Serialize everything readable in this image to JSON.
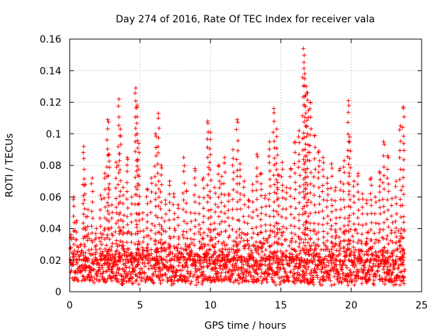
{
  "chart_data": {
    "type": "scatter",
    "title": "Day 274 of 2016, Rate Of TEC Index for receiver vala",
    "xlabel": "GPS time / hours",
    "ylabel": "ROTI / TECUs",
    "xlim": [
      0,
      25
    ],
    "ylim": [
      0,
      0.16
    ],
    "xticks": [
      0,
      5,
      10,
      15,
      20,
      25
    ],
    "xtick_labels": [
      "0",
      "5",
      "10",
      "15",
      "20",
      "25"
    ],
    "yticks": [
      0,
      0.02,
      0.04,
      0.06,
      0.08,
      0.1,
      0.12,
      0.14,
      0.16
    ],
    "ytick_labels": [
      "0",
      "0.02",
      "0.04",
      "0.06",
      "0.08",
      "0.1",
      "0.12",
      "0.14",
      "0.16"
    ],
    "grid": true,
    "marker": "plus",
    "color": "#ff0000",
    "series": [
      {
        "name": "ROTI",
        "x": [
          0.1,
          0.3,
          0.5,
          0.8,
          1.0,
          1.1,
          1.3,
          1.6,
          1.9,
          2.2,
          2.5,
          2.7,
          2.8,
          3.0,
          3.3,
          3.5,
          3.6,
          3.8,
          4.1,
          4.4,
          4.7,
          4.8,
          4.9,
          5.2,
          5.5,
          5.8,
          6.1,
          6.3,
          6.5,
          6.8,
          7.1,
          7.4,
          7.7,
          8.1,
          8.3,
          8.6,
          8.9,
          9.2,
          9.5,
          9.8,
          10.0,
          10.3,
          10.6,
          10.8,
          11.0,
          11.3,
          11.6,
          11.9,
          12.1,
          12.4,
          12.7,
          13.0,
          13.3,
          13.6,
          13.9,
          14.2,
          14.5,
          14.7,
          14.8,
          15.1,
          15.4,
          15.7,
          16.0,
          16.3,
          16.6,
          16.7,
          16.8,
          16.9,
          17.1,
          17.4,
          17.7,
          18.0,
          18.3,
          18.6,
          18.9,
          19.2,
          19.5,
          19.8,
          19.9,
          20.2,
          20.5,
          20.8,
          21.1,
          21.4,
          21.7,
          22.0,
          22.3,
          22.6,
          22.9,
          23.2,
          23.5,
          23.7
        ],
        "y": [
          0.036,
          0.06,
          0.045,
          0.03,
          0.092,
          0.068,
          0.052,
          0.072,
          0.04,
          0.061,
          0.075,
          0.109,
          0.087,
          0.055,
          0.082,
          0.122,
          0.103,
          0.066,
          0.085,
          0.06,
          0.129,
          0.118,
          0.094,
          0.05,
          0.065,
          0.072,
          0.1,
          0.113,
          0.08,
          0.058,
          0.07,
          0.062,
          0.055,
          0.085,
          0.064,
          0.05,
          0.078,
          0.06,
          0.072,
          0.108,
          0.101,
          0.066,
          0.08,
          0.073,
          0.085,
          0.062,
          0.09,
          0.109,
          0.081,
          0.07,
          0.058,
          0.068,
          0.087,
          0.075,
          0.061,
          0.095,
          0.116,
          0.103,
          0.074,
          0.082,
          0.066,
          0.078,
          0.095,
          0.102,
          0.154,
          0.138,
          0.13,
          0.126,
          0.12,
          0.099,
          0.089,
          0.085,
          0.072,
          0.081,
          0.066,
          0.078,
          0.083,
          0.121,
          0.098,
          0.07,
          0.075,
          0.062,
          0.058,
          0.072,
          0.06,
          0.076,
          0.095,
          0.086,
          0.059,
          0.07,
          0.105,
          0.117
        ]
      }
    ]
  }
}
